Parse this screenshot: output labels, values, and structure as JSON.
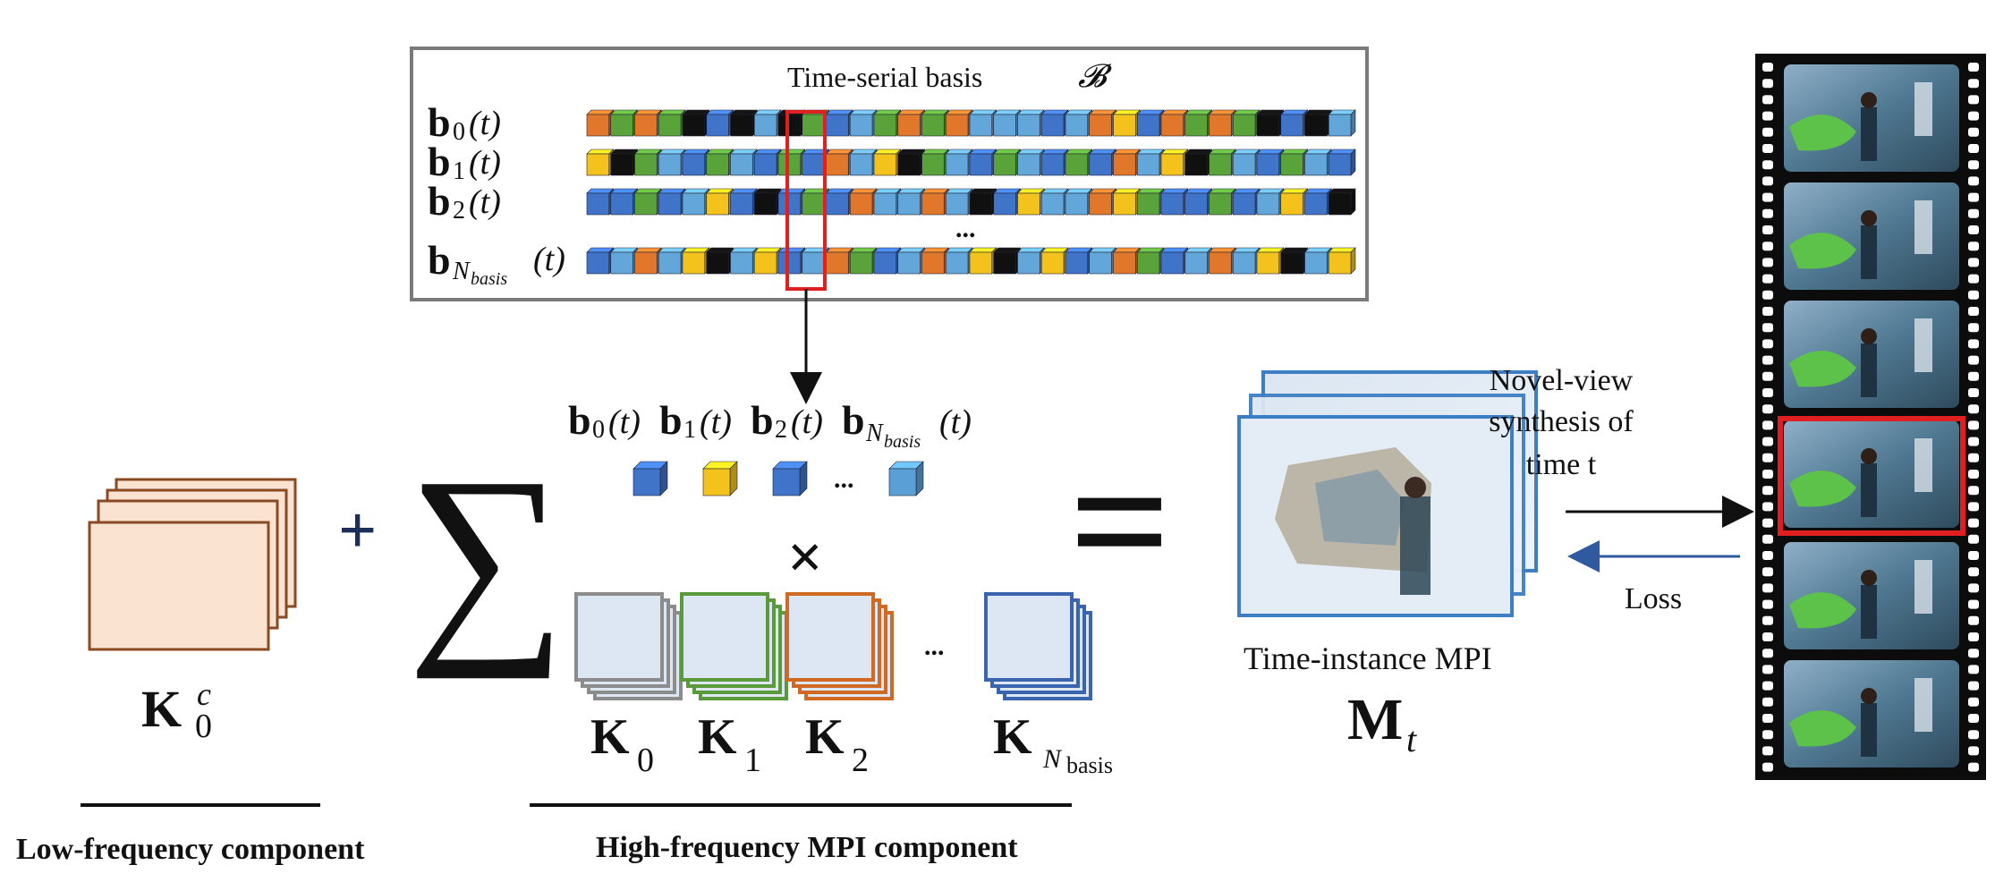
{
  "basis_box": {
    "title": "Time-serial basis",
    "title_symbol": "𝓑",
    "rows": [
      {
        "label_b": "b",
        "sub": "0",
        "arg": "(t)"
      },
      {
        "label_b": "b",
        "sub": "1",
        "arg": "(t)"
      },
      {
        "label_b": "b",
        "sub": "2",
        "arg": "(t)"
      },
      {
        "label_b": "b",
        "sub": "N_basis",
        "sub_main": "N",
        "sub_small": "basis",
        "arg": "(t)"
      }
    ],
    "ellipsis": "..."
  },
  "coefficients": {
    "terms": [
      {
        "b": "b",
        "sub": "0",
        "arg": "(t)"
      },
      {
        "b": "b",
        "sub": "1",
        "arg": "(t)"
      },
      {
        "b": "b",
        "sub": "2",
        "arg": "(t)"
      },
      {
        "b": "b",
        "sub_main": "N",
        "sub_small": "basis",
        "arg": "(t)"
      }
    ],
    "ellipsis": "...",
    "cube_colors": [
      "#3f74c9",
      "#f3c21c",
      "#3f74c9",
      "#5aa0d6"
    ]
  },
  "operators": {
    "plus": "+",
    "sum": "∑",
    "times": "×",
    "equals": "="
  },
  "kernels": {
    "items": [
      {
        "label": "K",
        "sub": "0",
        "color": "#8c8c8c"
      },
      {
        "label": "K",
        "sub": "1",
        "color": "#5a9a3a"
      },
      {
        "label": "K",
        "sub": "2",
        "color": "#d06a22"
      },
      {
        "label": "K",
        "sub_main": "N",
        "sub_small": "basis",
        "color": "#3b64ae"
      }
    ],
    "ellipsis": "..."
  },
  "low_freq": {
    "label": "K",
    "sub": "0",
    "sup": "c",
    "section_label": "Low-frequency component",
    "color": "#8a4a22"
  },
  "high_freq": {
    "section_label": "High-frequency MPI component"
  },
  "mpi": {
    "caption": "Time-instance MPI",
    "symbol": "M",
    "symbol_sub": "t"
  },
  "synthesis": {
    "line1": "Novel-view",
    "line2": "synthesis of",
    "line3": "time t",
    "loss": "Loss"
  },
  "palette": {
    "blue": "#3f74c9",
    "light_blue": "#62a6da",
    "yellow": "#f3c21c",
    "green": "#5aa33a",
    "orange": "#e0772a",
    "black": "#101010",
    "highlight": "#e02020",
    "arrow_blue": "#2f5aa0"
  }
}
